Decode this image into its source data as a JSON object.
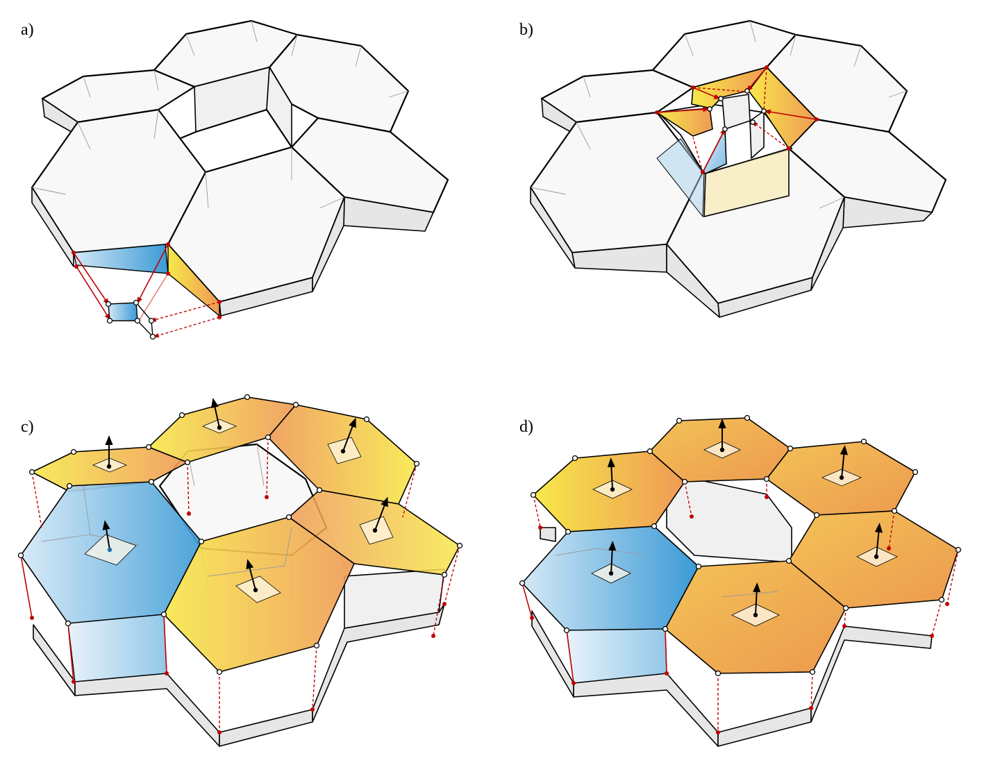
{
  "panels": [
    {
      "id": "a",
      "label": "a)"
    },
    {
      "id": "b",
      "label": "b)"
    },
    {
      "id": "c",
      "label": "c)"
    },
    {
      "id": "d",
      "label": "d)"
    }
  ],
  "colors": {
    "blue": "#3a9ad6",
    "yellow": "#f7e64a",
    "orange": "#ef9a55",
    "edge_red": "#c00000",
    "wall_grey": "#f0f0f0"
  }
}
